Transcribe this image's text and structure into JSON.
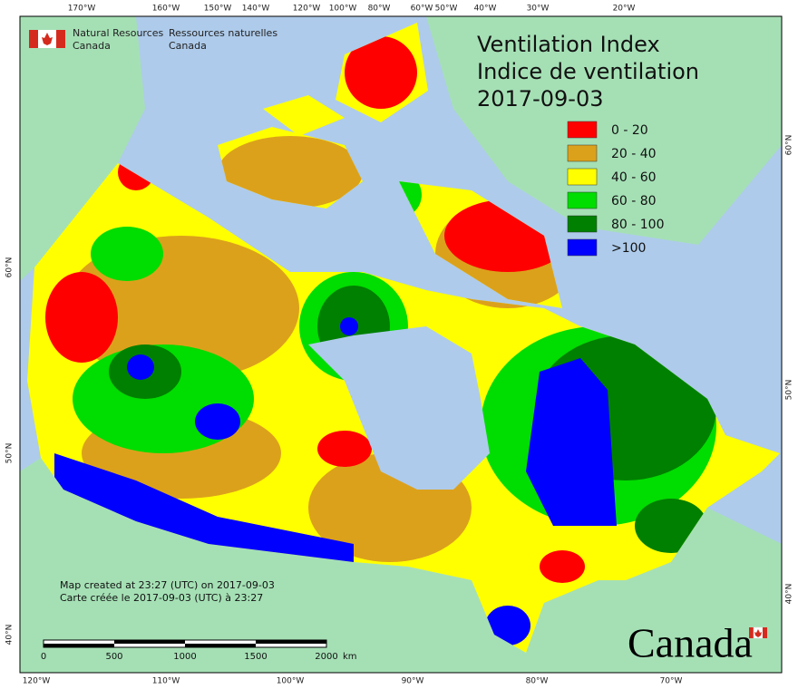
{
  "header": {
    "english": [
      "Natural Resources",
      "Canada"
    ],
    "french": [
      "Ressources naturelles",
      "Canada"
    ]
  },
  "title": [
    "Ventilation Index",
    "Indice de ventilation",
    "2017-09-03"
  ],
  "legend": [
    {
      "label": "0 - 20",
      "color": "#ff0000"
    },
    {
      "label": "20 - 40",
      "color": "#dca11b"
    },
    {
      "label": "40 - 60",
      "color": "#ffff00"
    },
    {
      "label": "60 - 80",
      "color": "#00dd00"
    },
    {
      "label": "80 - 100",
      "color": "#008000"
    },
    {
      "label": ">100",
      "color": "#0000ff"
    }
  ],
  "graticule": {
    "top": [
      "170°W",
      "160°W",
      "150°W",
      "140°W",
      "120°W",
      "100°W",
      "80°W",
      "60°W",
      "50°W",
      "40°W",
      "30°W",
      "20°W"
    ],
    "bottom": [
      "120°W",
      "110°W",
      "100°W",
      "90°W",
      "80°W",
      "70°W"
    ],
    "left": [
      "60°N",
      "50°N",
      "40°N"
    ],
    "right": [
      "60°N",
      "50°N",
      "40°N"
    ]
  },
  "footer": [
    "Map created at 23:27 (UTC) on 2017-09-03",
    "Carte créée le 2017-09-03 (UTC) à 23:27"
  ],
  "scale_bar": {
    "ticks": [
      0,
      500,
      1000,
      1500,
      2000
    ],
    "unit": "km"
  },
  "wordmark": "Canada"
}
